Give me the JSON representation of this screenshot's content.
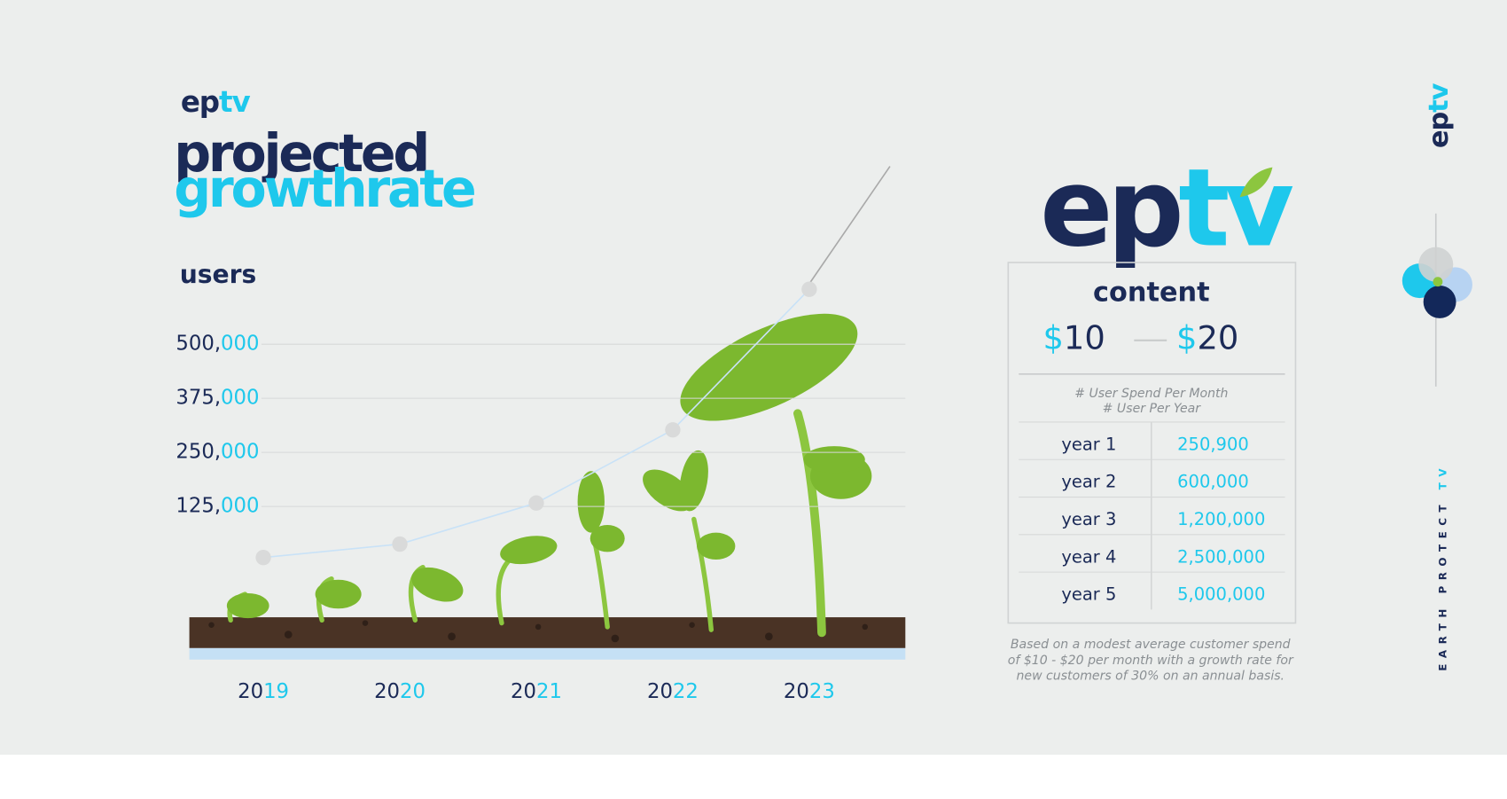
{
  "brand": "eptv",
  "chart_data": {
    "type": "line",
    "title_line1": "projected",
    "title_line2": "growthrate",
    "y_label": "users",
    "categories": [
      "2019",
      "2020",
      "2021",
      "2022",
      "2023"
    ],
    "values": [
      7000,
      38000,
      133000,
      302000,
      627000
    ],
    "color": "#c9e2f7",
    "ylim": [
      0,
      800000
    ],
    "yticks": [
      {
        "value": 125000,
        "label": "125,000"
      },
      {
        "value": 250000,
        "label": "250,000"
      },
      {
        "value": 375000,
        "label": "375,000"
      },
      {
        "value": 500000,
        "label": "500,000"
      }
    ],
    "grid": true
  },
  "panel": {
    "heading": "content",
    "price_low": "$10",
    "price_high": "$20",
    "header_lines": [
      "# User Spend Per Month",
      "# User Per Year"
    ],
    "rows": [
      [
        "year 1",
        "250,900"
      ],
      [
        "year 2",
        "600,000"
      ],
      [
        "year 3",
        "1,200,000"
      ],
      [
        "year 4",
        "2,500,000"
      ],
      [
        "year 5",
        "5,000,000"
      ]
    ],
    "footnote": [
      "Based on a modest average customer spend",
      "of $10 - $20 per month with a growth rate for",
      "new customers of 30% on an annual basis."
    ]
  },
  "side_text": "EARTH PROTECT TV"
}
